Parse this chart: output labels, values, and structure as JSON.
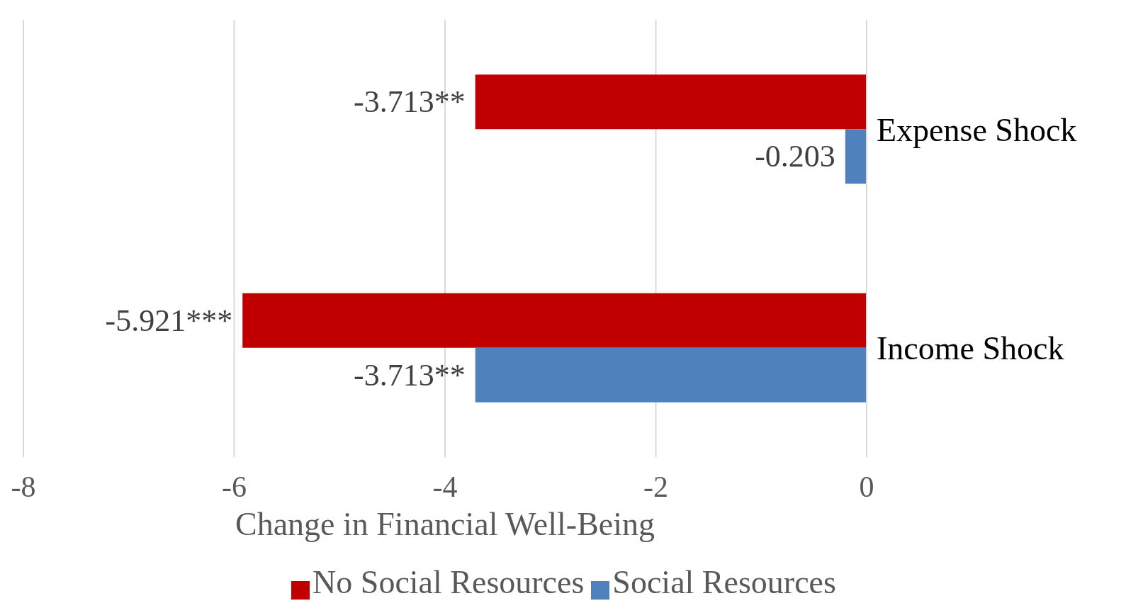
{
  "chart_data": {
    "type": "bar",
    "orientation": "horizontal",
    "xlabel": "Change in Financial Well-Being",
    "categories": [
      "Expense Shock",
      "Income Shock"
    ],
    "series": [
      {
        "name": "No Social Resources",
        "color": "#c00000",
        "values": [
          -3.713,
          -5.921
        ],
        "value_labels": [
          "-3.713**",
          "-5.921***"
        ]
      },
      {
        "name": "Social Resources",
        "color": "#4f81bd",
        "values": [
          -0.203,
          -3.713
        ],
        "value_labels": [
          "-0.203",
          "-3.713**"
        ]
      }
    ],
    "xlim": [
      -8,
      0
    ],
    "xticks": [
      -8,
      -6,
      -4,
      -2,
      0
    ],
    "grid": "x",
    "legend": "bottom"
  }
}
